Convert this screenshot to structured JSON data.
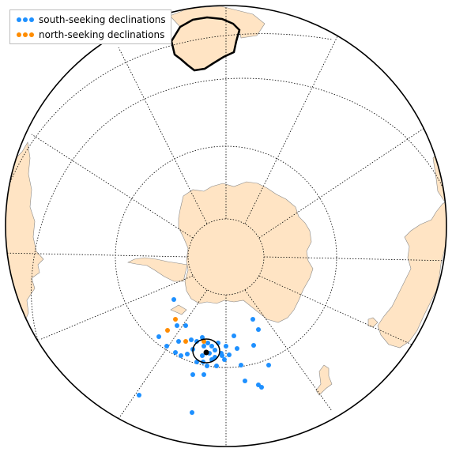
{
  "legend": {
    "items": [
      {
        "label": "south-seeking declinations",
        "color": "#1e90ff"
      },
      {
        "label": "north-seeking declinations",
        "color": "#ff8c00"
      }
    ]
  },
  "colors": {
    "land": "#ffe4c4",
    "coast": "#888888",
    "grid": "#000000",
    "south_seeking": "#1e90ff",
    "north_seeking": "#ff8c00",
    "pole_mean": "#000000",
    "highlight_outline": "#000000"
  },
  "projection": {
    "type": "orthographic",
    "center": "south-pole",
    "meridian_interval_deg": 30,
    "parallel_interval_deg": 30
  },
  "landmasses": [
    "antarctica",
    "south-america",
    "africa",
    "australia",
    "new-zealand",
    "greenland"
  ],
  "chart_data": {
    "type": "scatter",
    "series": [
      {
        "name": "south-seeking declinations",
        "color": "#1e90ff"
      },
      {
        "name": "north-seeking declinations",
        "color": "#ff8c00"
      }
    ],
    "mean_pole": {
      "color": "#000000",
      "a95_circle": true
    }
  }
}
